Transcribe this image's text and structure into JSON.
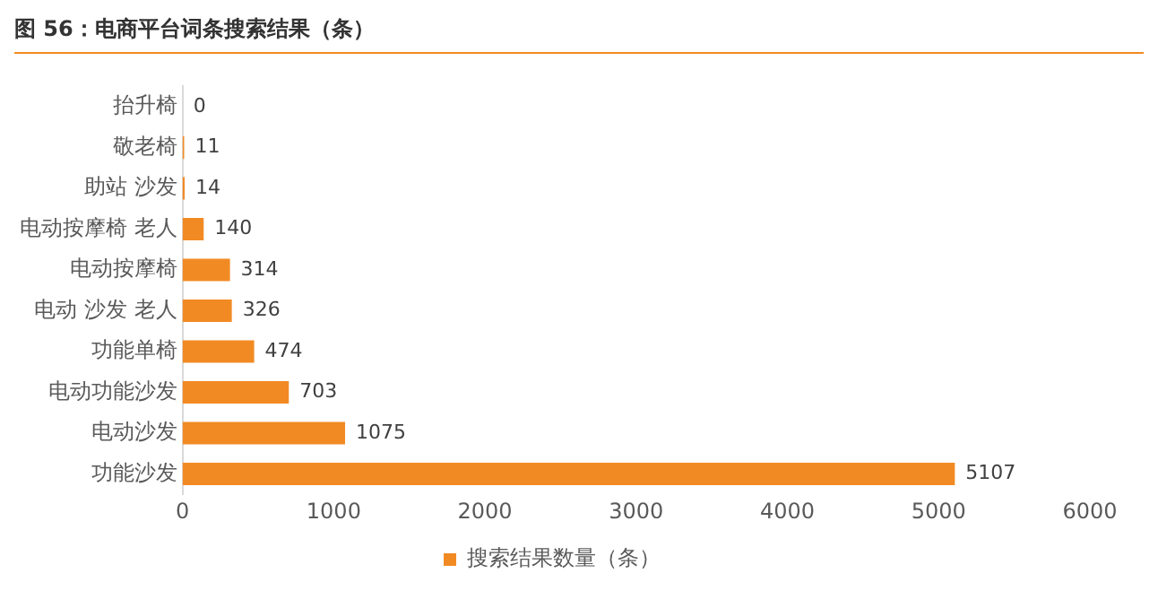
{
  "chart_data": {
    "type": "bar",
    "title": "图 56：电商平台词条搜索结果（条）",
    "orientation": "horizontal",
    "categories": [
      "抬升椅",
      "敬老椅",
      "助站 沙发",
      "电动按摩椅 老人",
      "电动按摩椅",
      "电动 沙发 老人",
      "功能单椅",
      "电动功能沙发",
      "电动沙发",
      "功能沙发"
    ],
    "series": [
      {
        "name": "搜索结果数量（条）",
        "color": "#f28a24",
        "values": [
          0,
          11,
          14,
          140,
          314,
          326,
          474,
          703,
          1075,
          5107
        ]
      }
    ],
    "xlim": [
      0,
      6000
    ],
    "xticks": [
      0,
      1000,
      2000,
      3000,
      4000,
      5000,
      6000
    ],
    "grid": false,
    "legend": "bottom",
    "data_labels": true
  }
}
